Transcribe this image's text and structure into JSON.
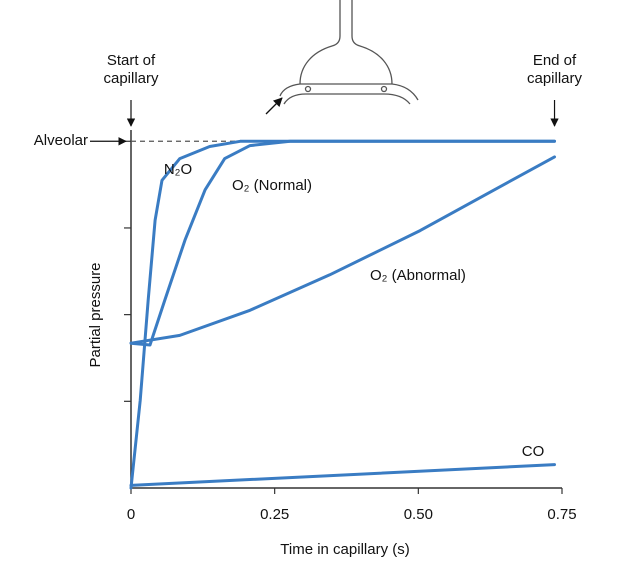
{
  "chart_data": {
    "type": "line",
    "xlabel": "Time in capillary (s)",
    "ylabel": "Partial pressure",
    "xlim": [
      0,
      0.75
    ],
    "ylim": [
      0,
      4.13
    ],
    "xticks": [
      0,
      0.25,
      {
        "value": 0.5,
        "label": "0.50"
      },
      0.75
    ],
    "yticks": [
      1,
      2,
      3,
      4
    ],
    "annotations": [
      {
        "lines": [
          "Start of",
          "capillary"
        ],
        "x": 0
      },
      {
        "lines": [
          "End of",
          "capillary"
        ],
        "x": 0.737
      },
      {
        "text": "Alveolar",
        "y": 4
      }
    ],
    "series": [
      {
        "name": "N₂O",
        "color": "#3a7cc3",
        "x": [
          0,
          0.016,
          0.03,
          0.042,
          0.054,
          0.085,
          0.137,
          0.19,
          0.26,
          0.737
        ],
        "values": [
          0,
          1.01,
          2.17,
          3.09,
          3.55,
          3.8,
          3.94,
          4.0,
          4.0,
          4.0
        ]
      },
      {
        "name": "O₂ (Normal)",
        "color": "#3a7cc3",
        "x": [
          0,
          0.033,
          0.059,
          0.094,
          0.129,
          0.163,
          0.207,
          0.277,
          0.737
        ],
        "values": [
          1.67,
          1.65,
          2.17,
          2.86,
          3.44,
          3.8,
          3.95,
          4.0,
          4.0
        ]
      },
      {
        "name": "O₂ (Abnormal)",
        "color": "#3a7cc3",
        "x": [
          0,
          0.085,
          0.207,
          0.346,
          0.503,
          0.624,
          0.737
        ],
        "values": [
          1.67,
          1.76,
          2.05,
          2.46,
          2.97,
          3.41,
          3.82
        ]
      },
      {
        "name": "CO",
        "color": "#3a7cc3",
        "x": [
          0,
          0.737
        ],
        "values": [
          0.03,
          0.27
        ]
      }
    ]
  }
}
